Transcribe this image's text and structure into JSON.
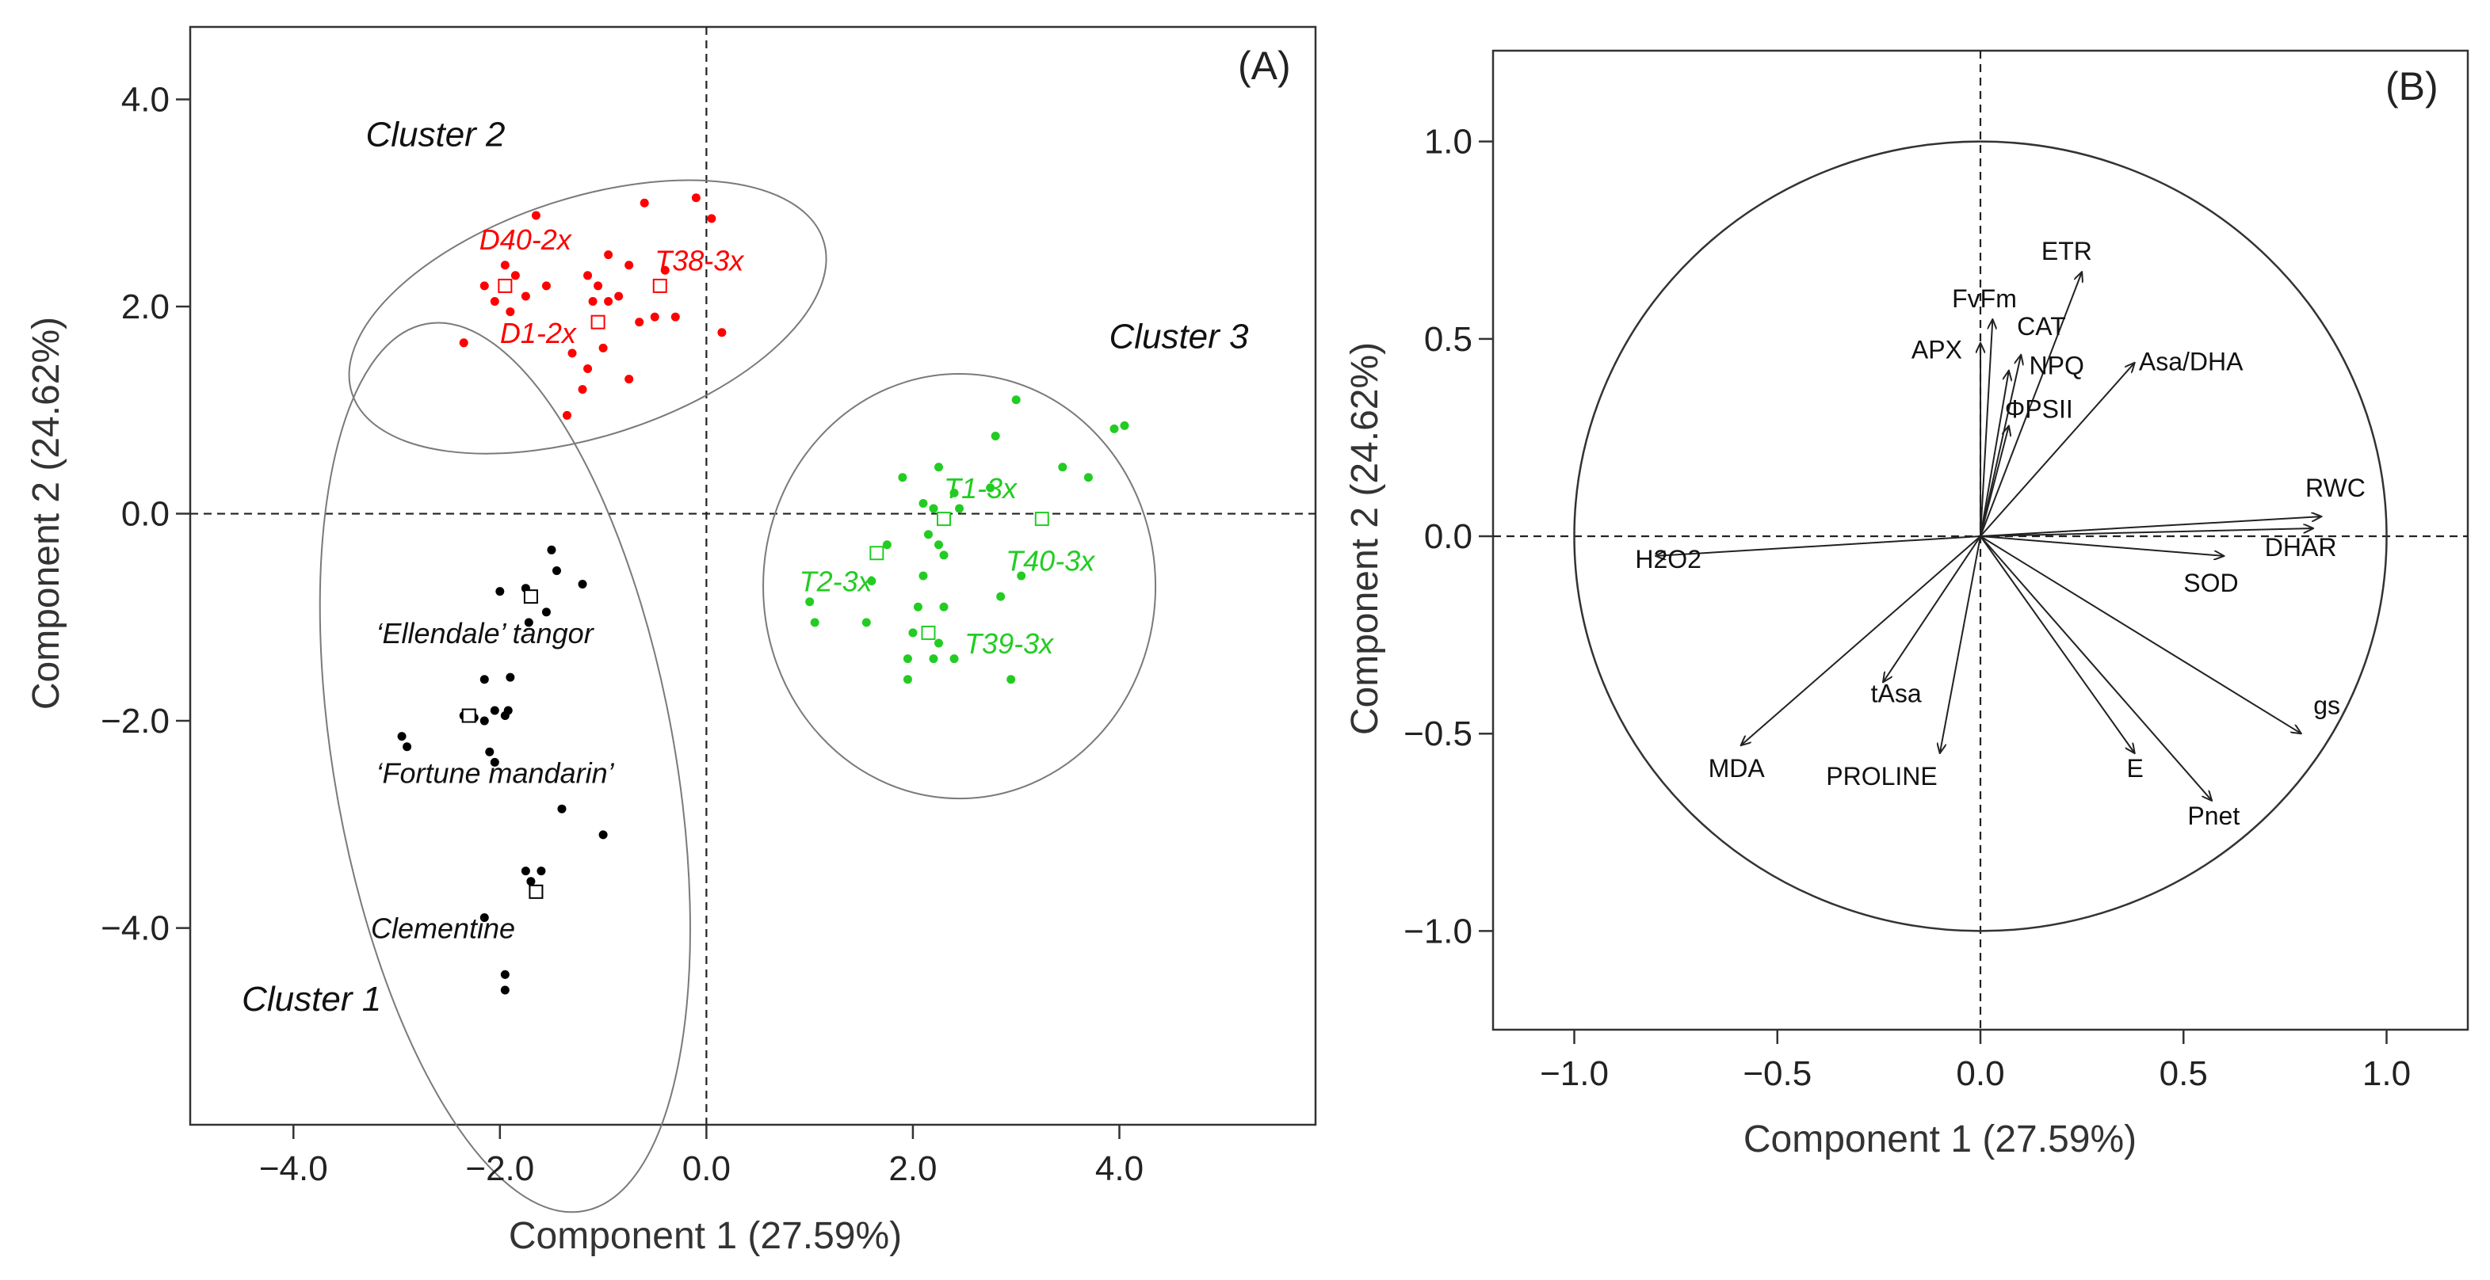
{
  "colors": {
    "cluster1": "#000000",
    "cluster2": "#ff0000",
    "cluster3": "#22cc22"
  },
  "chart_data": [
    {
      "type": "scatter",
      "panel_label": "(A)",
      "xlabel": "Component 1 (27.59%)",
      "ylabel": "Component 2 (24.62%)",
      "xlim": [
        -5.0,
        5.9
      ],
      "ylim": [
        -5.9,
        4.7
      ],
      "xticks": [
        -4.0,
        -2.0,
        0.0,
        2.0,
        4.0
      ],
      "yticks": [
        -4.0,
        -2.0,
        0.0,
        2.0,
        4.0
      ],
      "xtick_labels": [
        "−4.0",
        "−2.0",
        "0.0",
        "2.0",
        "4.0"
      ],
      "ytick_labels": [
        "−4.0",
        "−2.0",
        "0.0",
        "2.0",
        "4.0"
      ],
      "reference_lines": {
        "x": 0,
        "y": 0
      },
      "series": [
        {
          "name": "Cluster 1",
          "color_key": "cluster1",
          "ellipse": {
            "cx": -1.95,
            "cy": -2.45,
            "rx": 1.65,
            "ry": 4.35,
            "angle": -10
          },
          "points": [
            [
              -1.5,
              -0.35
            ],
            [
              -1.45,
              -0.55
            ],
            [
              -1.2,
              -0.68
            ],
            [
              -1.75,
              -0.72
            ],
            [
              -2.0,
              -0.75
            ],
            [
              -1.55,
              -0.95
            ],
            [
              -1.72,
              -1.05
            ],
            [
              -2.15,
              -1.6
            ],
            [
              -1.9,
              -1.58
            ],
            [
              -1.92,
              -1.9
            ],
            [
              -2.05,
              -1.9
            ],
            [
              -2.35,
              -1.95
            ],
            [
              -2.25,
              -1.97
            ],
            [
              -2.15,
              -2.0
            ],
            [
              -1.95,
              -1.95
            ],
            [
              -2.95,
              -2.15
            ],
            [
              -2.9,
              -2.25
            ],
            [
              -2.1,
              -2.3
            ],
            [
              -2.05,
              -2.4
            ],
            [
              -1.4,
              -2.85
            ],
            [
              -1.0,
              -3.1
            ],
            [
              -1.75,
              -3.45
            ],
            [
              -1.6,
              -3.45
            ],
            [
              -1.7,
              -3.55
            ],
            [
              -1.65,
              -3.65
            ],
            [
              -2.15,
              -3.9
            ],
            [
              -1.95,
              -4.45
            ],
            [
              -1.95,
              -4.6
            ]
          ],
          "centroids": [
            [
              -1.7,
              -0.8
            ],
            [
              -2.3,
              -1.95
            ],
            [
              -1.65,
              -3.65
            ]
          ],
          "labels": [
            {
              "text": "‘Ellendale’ tangor",
              "x": -3.2,
              "y": -1.25
            },
            {
              "text": "‘Fortune mandarin’",
              "x": -3.2,
              "y": -2.6
            },
            {
              "text": "Clementine",
              "x": -3.25,
              "y": -4.1
            }
          ]
        },
        {
          "name": "Cluster 2",
          "color_key": "cluster2",
          "ellipse": {
            "cx": -1.15,
            "cy": 1.9,
            "rx": 2.4,
            "ry": 1.15,
            "angle": -18
          },
          "points": [
            [
              -1.65,
              2.88
            ],
            [
              -0.6,
              3.0
            ],
            [
              -0.1,
              3.05
            ],
            [
              0.05,
              2.85
            ],
            [
              -1.95,
              2.4
            ],
            [
              -1.85,
              2.3
            ],
            [
              -0.95,
              2.5
            ],
            [
              -1.15,
              2.3
            ],
            [
              -1.05,
              2.2
            ],
            [
              -2.15,
              2.2
            ],
            [
              -0.75,
              2.4
            ],
            [
              -0.4,
              2.35
            ],
            [
              -1.75,
              2.1
            ],
            [
              -1.55,
              2.2
            ],
            [
              -0.95,
              2.05
            ],
            [
              -2.05,
              2.05
            ],
            [
              -1.1,
              2.05
            ],
            [
              -0.85,
              2.1
            ],
            [
              -1.9,
              1.95
            ],
            [
              -0.65,
              1.85
            ],
            [
              -0.5,
              1.9
            ],
            [
              -0.3,
              1.9
            ],
            [
              0.15,
              1.75
            ],
            [
              -2.35,
              1.65
            ],
            [
              -1.3,
              1.55
            ],
            [
              -1.0,
              1.6
            ],
            [
              -1.15,
              1.4
            ],
            [
              -0.75,
              1.3
            ],
            [
              -1.2,
              1.2
            ],
            [
              -1.35,
              0.95
            ]
          ],
          "centroids": [
            [
              -1.95,
              2.2
            ],
            [
              -0.45,
              2.2
            ],
            [
              -1.05,
              1.85
            ]
          ],
          "labels": [
            {
              "text": "D40-2x",
              "x": -2.2,
              "y": 2.55
            },
            {
              "text": "T38-3x",
              "x": -0.5,
              "y": 2.35
            },
            {
              "text": "D1-2x",
              "x": -2.0,
              "y": 1.65
            }
          ]
        },
        {
          "name": "Cluster 3",
          "color_key": "cluster3",
          "ellipse": {
            "cx": 2.45,
            "cy": -0.7,
            "rx": 1.9,
            "ry": 2.05,
            "angle": 0
          },
          "points": [
            [
              3.0,
              1.1
            ],
            [
              4.05,
              0.85
            ],
            [
              3.95,
              0.82
            ],
            [
              2.8,
              0.75
            ],
            [
              3.45,
              0.45
            ],
            [
              3.7,
              0.35
            ],
            [
              2.25,
              0.45
            ],
            [
              1.9,
              0.35
            ],
            [
              2.75,
              0.25
            ],
            [
              2.4,
              0.2
            ],
            [
              2.1,
              0.1
            ],
            [
              2.45,
              0.05
            ],
            [
              2.2,
              0.05
            ],
            [
              2.3,
              -0.05
            ],
            [
              2.15,
              -0.2
            ],
            [
              2.25,
              -0.3
            ],
            [
              1.75,
              -0.3
            ],
            [
              2.3,
              -0.4
            ],
            [
              2.1,
              -0.6
            ],
            [
              1.6,
              -0.65
            ],
            [
              3.05,
              -0.6
            ],
            [
              1.0,
              -0.85
            ],
            [
              2.05,
              -0.9
            ],
            [
              2.3,
              -0.9
            ],
            [
              2.85,
              -0.8
            ],
            [
              1.05,
              -1.05
            ],
            [
              1.55,
              -1.05
            ],
            [
              2.0,
              -1.15
            ],
            [
              2.25,
              -1.25
            ],
            [
              1.95,
              -1.4
            ],
            [
              2.2,
              -1.4
            ],
            [
              2.4,
              -1.4
            ],
            [
              1.95,
              -1.6
            ],
            [
              2.95,
              -1.6
            ]
          ],
          "centroids": [
            [
              2.3,
              -0.05
            ],
            [
              3.25,
              -0.05
            ],
            [
              1.65,
              -0.38
            ],
            [
              2.15,
              -1.15
            ]
          ],
          "labels": [
            {
              "text": "T1-3x",
              "x": 2.3,
              "y": 0.15
            },
            {
              "text": "T40-3x",
              "x": 2.9,
              "y": -0.55
            },
            {
              "text": "T2-3x",
              "x": 0.9,
              "y": -0.75
            },
            {
              "text": "T39-3x",
              "x": 2.5,
              "y": -1.35
            }
          ]
        }
      ],
      "cluster_labels": [
        {
          "text": "Cluster 2",
          "x": -3.3,
          "y": 3.55
        },
        {
          "text": "Cluster 3",
          "x": 3.9,
          "y": 1.6
        },
        {
          "text": "Cluster 1",
          "x": -4.5,
          "y": -4.8
        }
      ]
    },
    {
      "type": "scatter",
      "subtype": "correlation circle (loading vectors)",
      "panel_label": "(B)",
      "xlabel": "Component 1 (27.59%)",
      "ylabel": "Component 2 (24.62%)",
      "xlim": [
        -1.2,
        1.2
      ],
      "ylim": [
        -1.25,
        1.23
      ],
      "xticks": [
        -1.0,
        -0.5,
        0.0,
        0.5,
        1.0
      ],
      "yticks": [
        -1.0,
        -0.5,
        0.0,
        0.5,
        1.0
      ],
      "xtick_labels": [
        "−1.0",
        "−0.5",
        "0.0",
        "0.5",
        "1.0"
      ],
      "ytick_labels": [
        "−1.0",
        "−0.5",
        "0.0",
        "0.5",
        "1.0"
      ],
      "unit_circle_radius": 1.0,
      "vectors": [
        {
          "name": "ETR",
          "x": 0.25,
          "y": 0.67,
          "lx": 0.15,
          "ly": 0.7
        },
        {
          "name": "FvFm",
          "x": 0.03,
          "y": 0.55,
          "lx": -0.07,
          "ly": 0.58
        },
        {
          "name": "CAT",
          "x": 0.1,
          "y": 0.46,
          "lx": 0.09,
          "ly": 0.51
        },
        {
          "name": "APX",
          "x": 0.0,
          "y": 0.49,
          "lx": -0.17,
          "ly": 0.45
        },
        {
          "name": "NPQ",
          "x": 0.07,
          "y": 0.42,
          "lx": 0.12,
          "ly": 0.41
        },
        {
          "name": "Asa/DHA",
          "x": 0.38,
          "y": 0.44,
          "lx": 0.39,
          "ly": 0.42
        },
        {
          "name": "ΦPSII",
          "x": 0.07,
          "y": 0.28,
          "lx": 0.06,
          "ly": 0.3
        },
        {
          "name": "RWC",
          "x": 0.84,
          "y": 0.05,
          "lx": 0.8,
          "ly": 0.1
        },
        {
          "name": "DHAR",
          "x": 0.82,
          "y": 0.02,
          "lx": 0.7,
          "ly": -0.05
        },
        {
          "name": "SOD",
          "x": 0.6,
          "y": -0.05,
          "lx": 0.5,
          "ly": -0.14
        },
        {
          "name": "H2O2",
          "x": -0.8,
          "y": -0.05,
          "lx": -0.85,
          "ly": -0.08
        },
        {
          "name": "tAsa",
          "x": -0.24,
          "y": -0.37,
          "lx": -0.27,
          "ly": -0.42
        },
        {
          "name": "MDA",
          "x": -0.59,
          "y": -0.53,
          "lx": -0.67,
          "ly": -0.61
        },
        {
          "name": "PROLINE",
          "x": -0.1,
          "y": -0.55,
          "lx": -0.38,
          "ly": -0.63
        },
        {
          "name": "E",
          "x": 0.38,
          "y": -0.55,
          "lx": 0.36,
          "ly": -0.61
        },
        {
          "name": "gs",
          "x": 0.79,
          "y": -0.5,
          "lx": 0.82,
          "ly": -0.45
        },
        {
          "name": "Pnet",
          "x": 0.57,
          "y": -0.67,
          "lx": 0.51,
          "ly": -0.73
        }
      ]
    }
  ]
}
